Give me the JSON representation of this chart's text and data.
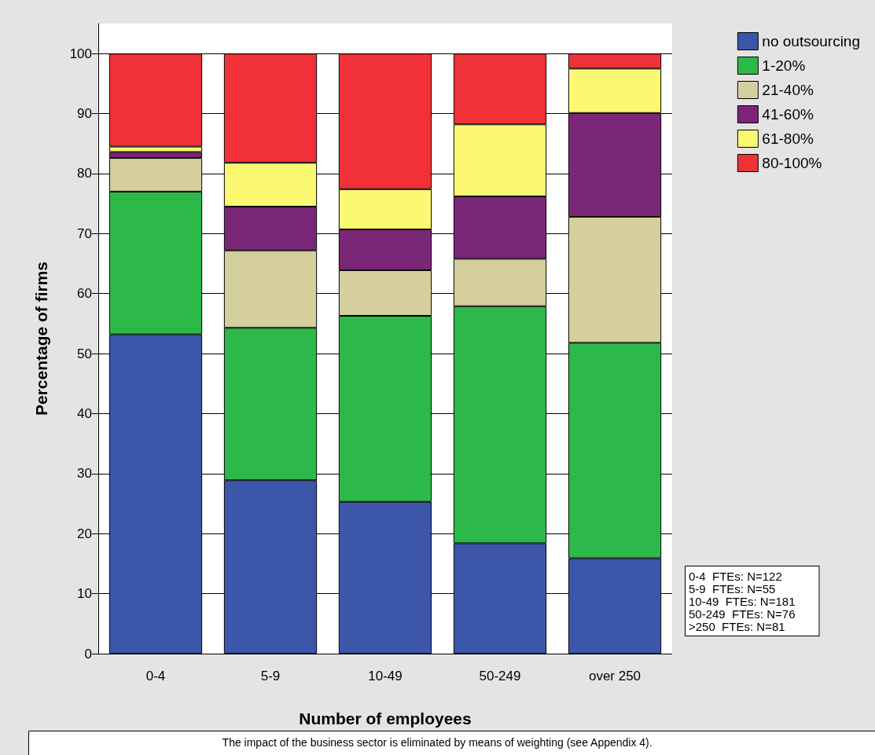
{
  "chart_data": {
    "type": "bar",
    "stacked": true,
    "categories": [
      "0-4",
      "5-9",
      "10-49",
      "50-249",
      "over 250"
    ],
    "series": [
      {
        "name": "no outsourcing",
        "color": "#3c56aa",
        "values": [
          53.2,
          28.9,
          25.3,
          18.4,
          15.9
        ]
      },
      {
        "name": "1-20%",
        "color": "#2db84a",
        "values": [
          23.8,
          25.4,
          31.0,
          39.5,
          35.9
        ]
      },
      {
        "name": "21-40%",
        "color": "#d5cf9d",
        "values": [
          5.6,
          12.9,
          7.6,
          7.9,
          21.0
        ]
      },
      {
        "name": "41-60%",
        "color": "#7b2777",
        "values": [
          1.0,
          7.3,
          6.8,
          10.4,
          17.3
        ]
      },
      {
        "name": "61-80%",
        "color": "#fbf871",
        "values": [
          0.9,
          7.3,
          6.7,
          12.0,
          7.4
        ]
      },
      {
        "name": "80-100%",
        "color": "#f03137",
        "values": [
          15.5,
          18.2,
          22.6,
          11.8,
          2.5
        ]
      }
    ],
    "xlabel": "Number of employees",
    "ylabel": "Percentage of firms",
    "ylim": [
      0,
      105
    ],
    "yticks": [
      0,
      10,
      20,
      30,
      40,
      50,
      60,
      70,
      80,
      90,
      100
    ],
    "grid": "y",
    "legend": "top right",
    "annotations": [
      "0-4  FTEs: N=122\n5-9  FTEs: N=55\n10-49  FTEs: N=181\n50-249  FTEs: N=76\n>250  FTEs: N=81",
      "The impact of the business sector is eliminated by means of weighting (see Appendix 4)."
    ]
  }
}
